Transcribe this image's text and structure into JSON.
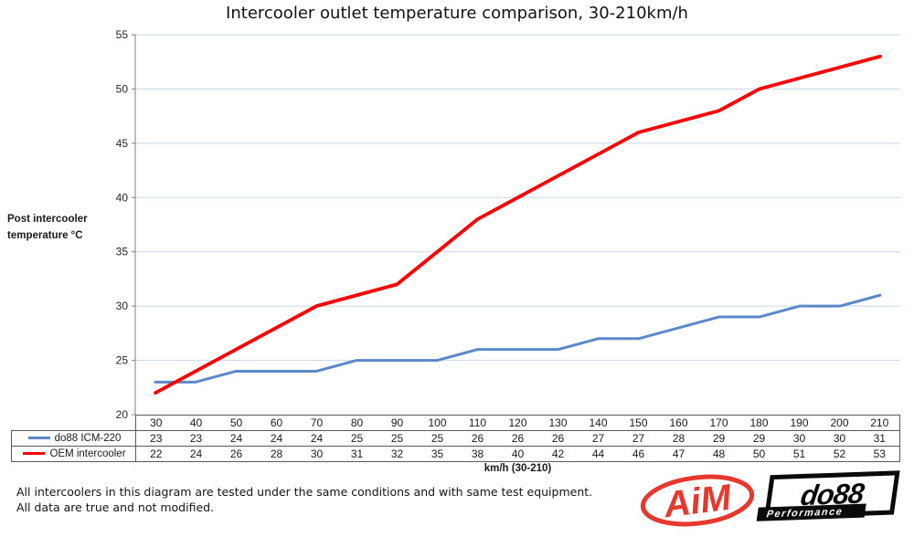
{
  "colors": {
    "do88_line": "#5B88C9",
    "oem_line": "#FF0000",
    "gridline": "#C9D8EC",
    "axis": "#808080",
    "tick_text": "#262626",
    "table_border": "#595959",
    "aim_red": "#E8372C"
  },
  "chart_data": {
    "type": "line",
    "title": "Intercooler outlet temperature comparison, 30-210km/h",
    "x": [
      30,
      40,
      50,
      60,
      70,
      80,
      90,
      100,
      110,
      120,
      130,
      140,
      150,
      160,
      170,
      180,
      190,
      200,
      210
    ],
    "series": [
      {
        "name": "do88 ICM-220",
        "color_key": "do88_line",
        "values": [
          23,
          23,
          24,
          24,
          24,
          25,
          25,
          25,
          26,
          26,
          26,
          27,
          27,
          28,
          29,
          29,
          30,
          30,
          31
        ]
      },
      {
        "name": "OEM intercooler",
        "color_key": "oem_line",
        "values": [
          22,
          24,
          26,
          28,
          30,
          31,
          32,
          35,
          38,
          40,
          42,
          44,
          46,
          47,
          48,
          50,
          51,
          52,
          53
        ]
      }
    ],
    "ylim": [
      20,
      55
    ],
    "yticks": [
      20,
      25,
      30,
      35,
      40,
      45,
      50,
      55
    ],
    "xlabel": "km/h (30-210)",
    "ylabel": "Post intercooler temperature °C",
    "y_axis_label_lines": [
      "Post intercooler",
      "temperature °C"
    ],
    "grid": "horizontal",
    "legend_position": "table-left"
  },
  "footnotes": {
    "line1": "All intercoolers in this diagram are tested under the same conditions and with same test equipment.",
    "line2": "All data are true and not modified."
  },
  "logos": {
    "aim": "AiM",
    "do88": "do88",
    "do88_tagline": "Performance"
  }
}
